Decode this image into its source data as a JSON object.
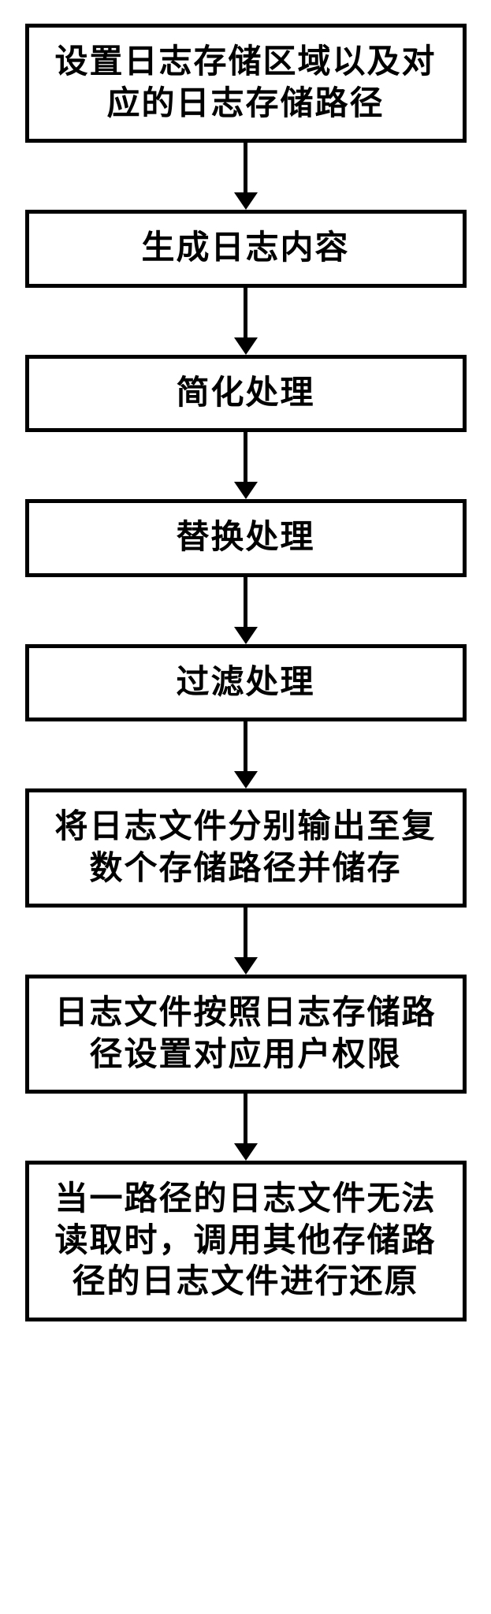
{
  "flow": {
    "type": "flowchart",
    "direction": "vertical",
    "node_border_color": "#000000",
    "node_border_width": 5,
    "node_background": "#ffffff",
    "text_color": "#000000",
    "font_family": "KaiTi",
    "font_size": 42,
    "font_weight": 900,
    "arrow_color": "#000000",
    "arrow_line_width": 5,
    "arrow_head_width": 30,
    "arrow_head_height": 22,
    "arrow_gap_height": 85,
    "page_background": "#ffffff",
    "nodes": [
      {
        "id": "n1",
        "text": "设置日志存储区域以及对应的日志存储路径"
      },
      {
        "id": "n2",
        "text": "生成日志内容"
      },
      {
        "id": "n3",
        "text": "简化处理"
      },
      {
        "id": "n4",
        "text": "替换处理"
      },
      {
        "id": "n5",
        "text": "过滤处理"
      },
      {
        "id": "n6",
        "text": "将日志文件分别输出至复数个存储路径并储存"
      },
      {
        "id": "n7",
        "text": "日志文件按照日志存储路径设置对应用户权限"
      },
      {
        "id": "n8",
        "text": "当一路径的日志文件无法读取时，调用其他存储路径的日志文件进行还原"
      }
    ],
    "edges": [
      {
        "from": "n1",
        "to": "n2"
      },
      {
        "from": "n2",
        "to": "n3"
      },
      {
        "from": "n3",
        "to": "n4"
      },
      {
        "from": "n4",
        "to": "n5"
      },
      {
        "from": "n5",
        "to": "n6"
      },
      {
        "from": "n6",
        "to": "n7"
      },
      {
        "from": "n7",
        "to": "n8"
      }
    ]
  }
}
